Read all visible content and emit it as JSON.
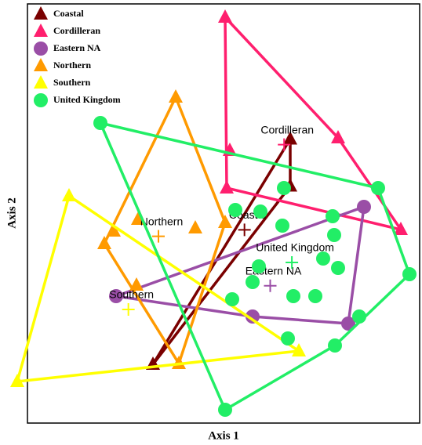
{
  "chart_data": {
    "type": "scatter",
    "x_label": "Axis 1",
    "y_label": "Axis 2",
    "xlim": [
      0,
      100
    ],
    "ylim": [
      0,
      107
    ],
    "legend": "upper-left",
    "series": [
      {
        "name": "Coastal",
        "color": "#7a0000",
        "marker": "triangle",
        "x": [
          67,
          67,
          32
        ],
        "y": [
          72.5,
          60.5,
          15
        ]
      },
      {
        "name": "Cordilleran",
        "color": "#ff1f6e",
        "marker": "triangle",
        "x": [
          50.4,
          79.2,
          51.6,
          50.8,
          95.2
        ],
        "y": [
          103.6,
          72.8,
          69.6,
          60,
          49.4
        ]
      },
      {
        "name": "Eastern NA",
        "color": "#9a4ea6",
        "marker": "circle",
        "x": [
          85.8,
          22.6,
          57.4,
          81.8
        ],
        "y": [
          55.2,
          32.4,
          27.2,
          25.4
        ]
      },
      {
        "name": "Northern",
        "color": "#ff9a00",
        "marker": "triangle",
        "x": [
          37.8,
          50.4,
          42.8,
          28.2,
          22,
          19.6,
          27.8,
          38.6
        ],
        "y": [
          83.2,
          51.2,
          49.8,
          52,
          49,
          45.8,
          35.2,
          15.2
        ]
      },
      {
        "name": "Southern",
        "color": "#ffff00",
        "marker": "triangle",
        "x": [
          10.6,
          69.2,
          -2.6
        ],
        "y": [
          58,
          18.4,
          10.6
        ]
      },
      {
        "name": "United Kingdom",
        "color": "#22ee66",
        "marker": "circle",
        "x": [
          18.6,
          89.4,
          97.4,
          78.4,
          50.4,
          84.6,
          65.4,
          53,
          59.4,
          65,
          77.8,
          78.2,
          59,
          75.4,
          79.2,
          57.4,
          67.8,
          73.4,
          52.2,
          66.4
        ],
        "y": [
          76.6,
          60,
          38,
          19.8,
          3.4,
          27.2,
          60,
          54.4,
          54,
          50.4,
          52.8,
          48,
          40,
          42,
          39.6,
          36,
          32.4,
          32.4,
          31.6,
          21.6
        ]
      }
    ]
  }
}
